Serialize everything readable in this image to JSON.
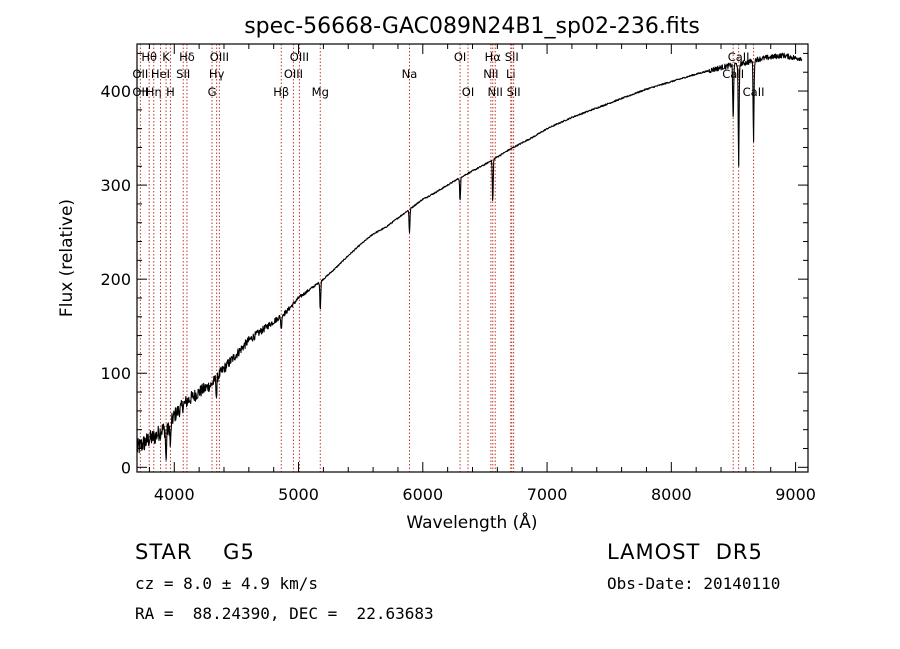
{
  "chart_data": {
    "type": "line",
    "title": "spec-56668-GAC089N24B1_sp02-236.fits",
    "xlabel": "Wavelength (Å)",
    "ylabel": "Flux (relative)",
    "xlim": [
      3700,
      9100
    ],
    "ylim": [
      -5,
      450
    ],
    "xticks": [
      4000,
      5000,
      6000,
      7000,
      8000,
      9000
    ],
    "yticks": [
      0,
      100,
      200,
      300,
      400
    ],
    "grid": false,
    "series": [
      {
        "x": [
          3700,
          3750,
          3800,
          3850,
          3900,
          3950,
          4000,
          4100,
          4200,
          4300,
          4400,
          4500,
          4600,
          4700,
          4800,
          4900,
          5000,
          5100,
          5200,
          5300,
          5400,
          5500,
          5600,
          5700,
          5800,
          5900,
          6000,
          6100,
          6200,
          6300,
          6400,
          6500,
          6600,
          6700,
          6800,
          6900,
          7000,
          7200,
          7400,
          7600,
          7800,
          8000,
          8200,
          8400,
          8500,
          8600,
          8700,
          8800,
          8900,
          9000
        ],
        "values": [
          20,
          25,
          30,
          33,
          40,
          40,
          55,
          70,
          80,
          88,
          105,
          120,
          135,
          145,
          155,
          165,
          180,
          190,
          200,
          212,
          225,
          237,
          248,
          255,
          265,
          275,
          285,
          292,
          300,
          308,
          315,
          322,
          330,
          338,
          345,
          352,
          360,
          372,
          382,
          392,
          402,
          410,
          418,
          425,
          428,
          430,
          434,
          436,
          438,
          435
        ]
      }
    ],
    "absorption_dips": [
      {
        "x": 3934,
        "depth": 35
      },
      {
        "x": 3969,
        "depth": 25
      },
      {
        "x": 4340,
        "depth": 20
      },
      {
        "x": 4861,
        "depth": 15
      },
      {
        "x": 5175,
        "depth": 30
      },
      {
        "x": 5893,
        "depth": 25
      },
      {
        "x": 6300,
        "depth": 25
      },
      {
        "x": 6563,
        "depth": 45
      },
      {
        "x": 8498,
        "depth": 60
      },
      {
        "x": 8542,
        "depth": 110
      },
      {
        "x": 8662,
        "depth": 85
      }
    ],
    "line_markers": [
      {
        "x": 3727,
        "labels": [
          {
            "text": "OII",
            "row": 2
          },
          {
            "text": "OII",
            "row": 3
          }
        ]
      },
      {
        "x": 3798,
        "labels": [
          {
            "text": "Hθ",
            "row": 1
          }
        ]
      },
      {
        "x": 3835,
        "labels": [
          {
            "text": "Hη",
            "row": 3
          }
        ]
      },
      {
        "x": 3889,
        "labels": [
          {
            "text": "HeI",
            "row": 2
          }
        ]
      },
      {
        "x": 3934,
        "labels": [
          {
            "text": "K",
            "row": 1
          }
        ]
      },
      {
        "x": 3969,
        "labels": [
          {
            "text": "H",
            "row": 3
          }
        ]
      },
      {
        "x": 4072,
        "labels": [
          {
            "text": "SII",
            "row": 2
          }
        ]
      },
      {
        "x": 4102,
        "labels": [
          {
            "text": "Hδ",
            "row": 1
          }
        ]
      },
      {
        "x": 4304,
        "labels": [
          {
            "text": "G",
            "row": 3
          }
        ]
      },
      {
        "x": 4341,
        "labels": [
          {
            "text": "Hγ",
            "row": 2
          }
        ]
      },
      {
        "x": 4363,
        "labels": [
          {
            "text": "OIII",
            "row": 1
          }
        ]
      },
      {
        "x": 4861,
        "labels": [
          {
            "text": "Hβ",
            "row": 3
          }
        ]
      },
      {
        "x": 4959,
        "labels": [
          {
            "text": "OIII",
            "row": 2
          }
        ]
      },
      {
        "x": 5007,
        "labels": [
          {
            "text": "OIII",
            "row": 1
          }
        ]
      },
      {
        "x": 5175,
        "labels": [
          {
            "text": "Mg",
            "row": 3
          }
        ]
      },
      {
        "x": 5893,
        "labels": [
          {
            "text": "Na",
            "row": 2
          }
        ]
      },
      {
        "x": 6300,
        "labels": [
          {
            "text": "OI",
            "row": 1
          }
        ]
      },
      {
        "x": 6364,
        "labels": [
          {
            "text": "OI",
            "row": 3
          }
        ]
      },
      {
        "x": 6548,
        "labels": [
          {
            "text": "NII",
            "row": 2
          }
        ]
      },
      {
        "x": 6563,
        "labels": [
          {
            "text": "Hα",
            "row": 1
          }
        ]
      },
      {
        "x": 6583,
        "labels": [
          {
            "text": "NII",
            "row": 3
          }
        ]
      },
      {
        "x": 6708,
        "labels": [
          {
            "text": "Li",
            "row": 2
          }
        ]
      },
      {
        "x": 6716,
        "labels": [
          {
            "text": "SII",
            "row": 1
          }
        ]
      },
      {
        "x": 6731,
        "labels": [
          {
            "text": "SII",
            "row": 3
          }
        ]
      },
      {
        "x": 8498,
        "labels": [
          {
            "text": "CaII",
            "row": 2
          }
        ]
      },
      {
        "x": 8542,
        "labels": [
          {
            "text": "CaII",
            "row": 1
          }
        ]
      },
      {
        "x": 8662,
        "labels": [
          {
            "text": "CaII",
            "row": 3
          }
        ]
      }
    ]
  },
  "info": {
    "class_line": "STAR    G5",
    "survey": "LAMOST  DR5",
    "cz": "cz = 8.0 ± 4.9 km/s",
    "obs_date": "Obs-Date: 20140110",
    "coords": "RA =  88.24390, DEC =  22.63683"
  }
}
